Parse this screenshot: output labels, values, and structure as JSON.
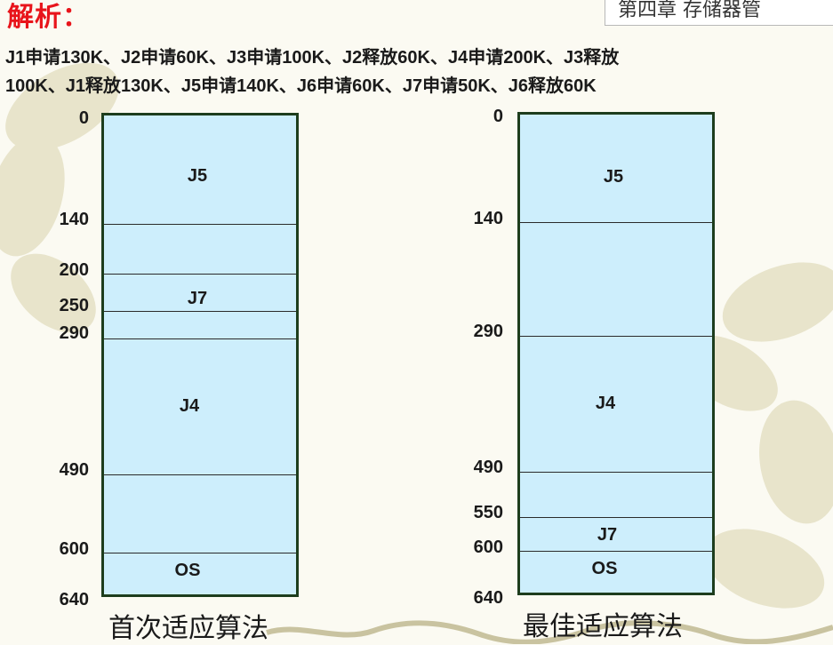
{
  "heading": "解析：",
  "chapter_title": "第四章 存储器管",
  "description": [
    "J1申请130K、J2申请60K、J3申请100K、J2释放60K、J4申请200K、J3释放",
    "100K、J1释放130K、J5申请140K、J6申请60K、J7申请50K、J6释放60K"
  ],
  "diagrams": [
    {
      "caption": "首次适应算法",
      "ticks": [
        "0",
        "140",
        "200",
        "250",
        "290",
        "490",
        "600",
        "640"
      ],
      "blocks": [
        {
          "label": "J5"
        },
        {
          "label": "J7"
        },
        {
          "label": "J4"
        },
        {
          "label": "OS"
        }
      ]
    },
    {
      "caption": "最佳适应算法",
      "ticks": [
        "0",
        "140",
        "290",
        "490",
        "550",
        "600",
        "640"
      ],
      "blocks": [
        {
          "label": "J5"
        },
        {
          "label": "J4"
        },
        {
          "label": "J7"
        },
        {
          "label": "OS"
        }
      ]
    }
  ]
}
